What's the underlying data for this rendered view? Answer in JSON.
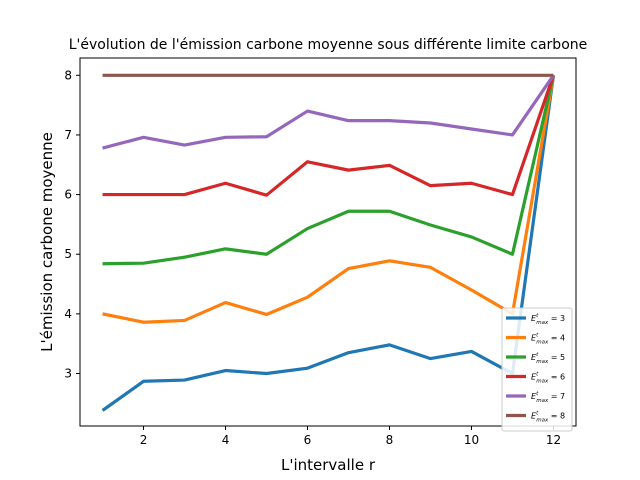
{
  "chart_data": {
    "type": "line",
    "title": "L'évolution de l'émission carbone moyenne sous différente limite carbone",
    "xlabel": "L'intervalle r",
    "ylabel": "L'émission carbone moyenne",
    "x": [
      1,
      2,
      3,
      4,
      5,
      6,
      7,
      8,
      9,
      10,
      11,
      12
    ],
    "xlim": [
      0.45,
      12.55
    ],
    "ylim": [
      2.12,
      8.29
    ],
    "xticks": [
      2,
      4,
      6,
      8,
      10,
      12
    ],
    "yticks": [
      3,
      4,
      5,
      6,
      7,
      8
    ],
    "grid": false,
    "legend_position": "lower-right",
    "series": [
      {
        "name": "E^t_max = 3",
        "legend_base": "E",
        "legend_sup": "t",
        "legend_sub": "max",
        "legend_rhs": "= 3",
        "color": "#1f77b4",
        "values": [
          2.38,
          2.87,
          2.89,
          3.05,
          3.0,
          3.09,
          3.35,
          3.48,
          3.25,
          3.37,
          3.0,
          8.0
        ]
      },
      {
        "name": "E^t_max = 4",
        "legend_base": "E",
        "legend_sup": "t",
        "legend_sub": "max",
        "legend_rhs": "= 4",
        "color": "#ff7f0e",
        "values": [
          4.0,
          3.86,
          3.89,
          4.19,
          3.99,
          4.28,
          4.76,
          4.89,
          4.78,
          4.4,
          4.0,
          8.0
        ]
      },
      {
        "name": "E^t_max = 5",
        "legend_base": "E",
        "legend_sup": "t",
        "legend_sub": "max",
        "legend_rhs": "= 5",
        "color": "#2ca02c",
        "values": [
          4.84,
          4.85,
          4.95,
          5.09,
          5.0,
          5.43,
          5.72,
          5.72,
          5.49,
          5.29,
          5.0,
          8.0
        ]
      },
      {
        "name": "E^t_max = 6",
        "legend_base": "E",
        "legend_sup": "t",
        "legend_sub": "max",
        "legend_rhs": "= 6",
        "color": "#d62728",
        "values": [
          6.0,
          6.0,
          6.0,
          6.19,
          5.99,
          6.55,
          6.41,
          6.49,
          6.15,
          6.19,
          6.0,
          8.0
        ]
      },
      {
        "name": "E^t_max = 7",
        "legend_base": "E",
        "legend_sup": "t",
        "legend_sub": "max",
        "legend_rhs": "= 7",
        "color": "#9467bd",
        "values": [
          6.78,
          6.96,
          6.83,
          6.96,
          6.97,
          7.4,
          7.24,
          7.24,
          7.2,
          7.1,
          7.0,
          8.0
        ]
      },
      {
        "name": "E^t_max = 8",
        "legend_base": "E",
        "legend_sup": "t",
        "legend_sub": "max",
        "legend_rhs": "= 8",
        "color": "#8c564b",
        "values": [
          8.0,
          8.0,
          8.0,
          8.0,
          8.0,
          8.0,
          8.0,
          8.0,
          8.0,
          8.0,
          8.0,
          8.0
        ]
      }
    ]
  }
}
